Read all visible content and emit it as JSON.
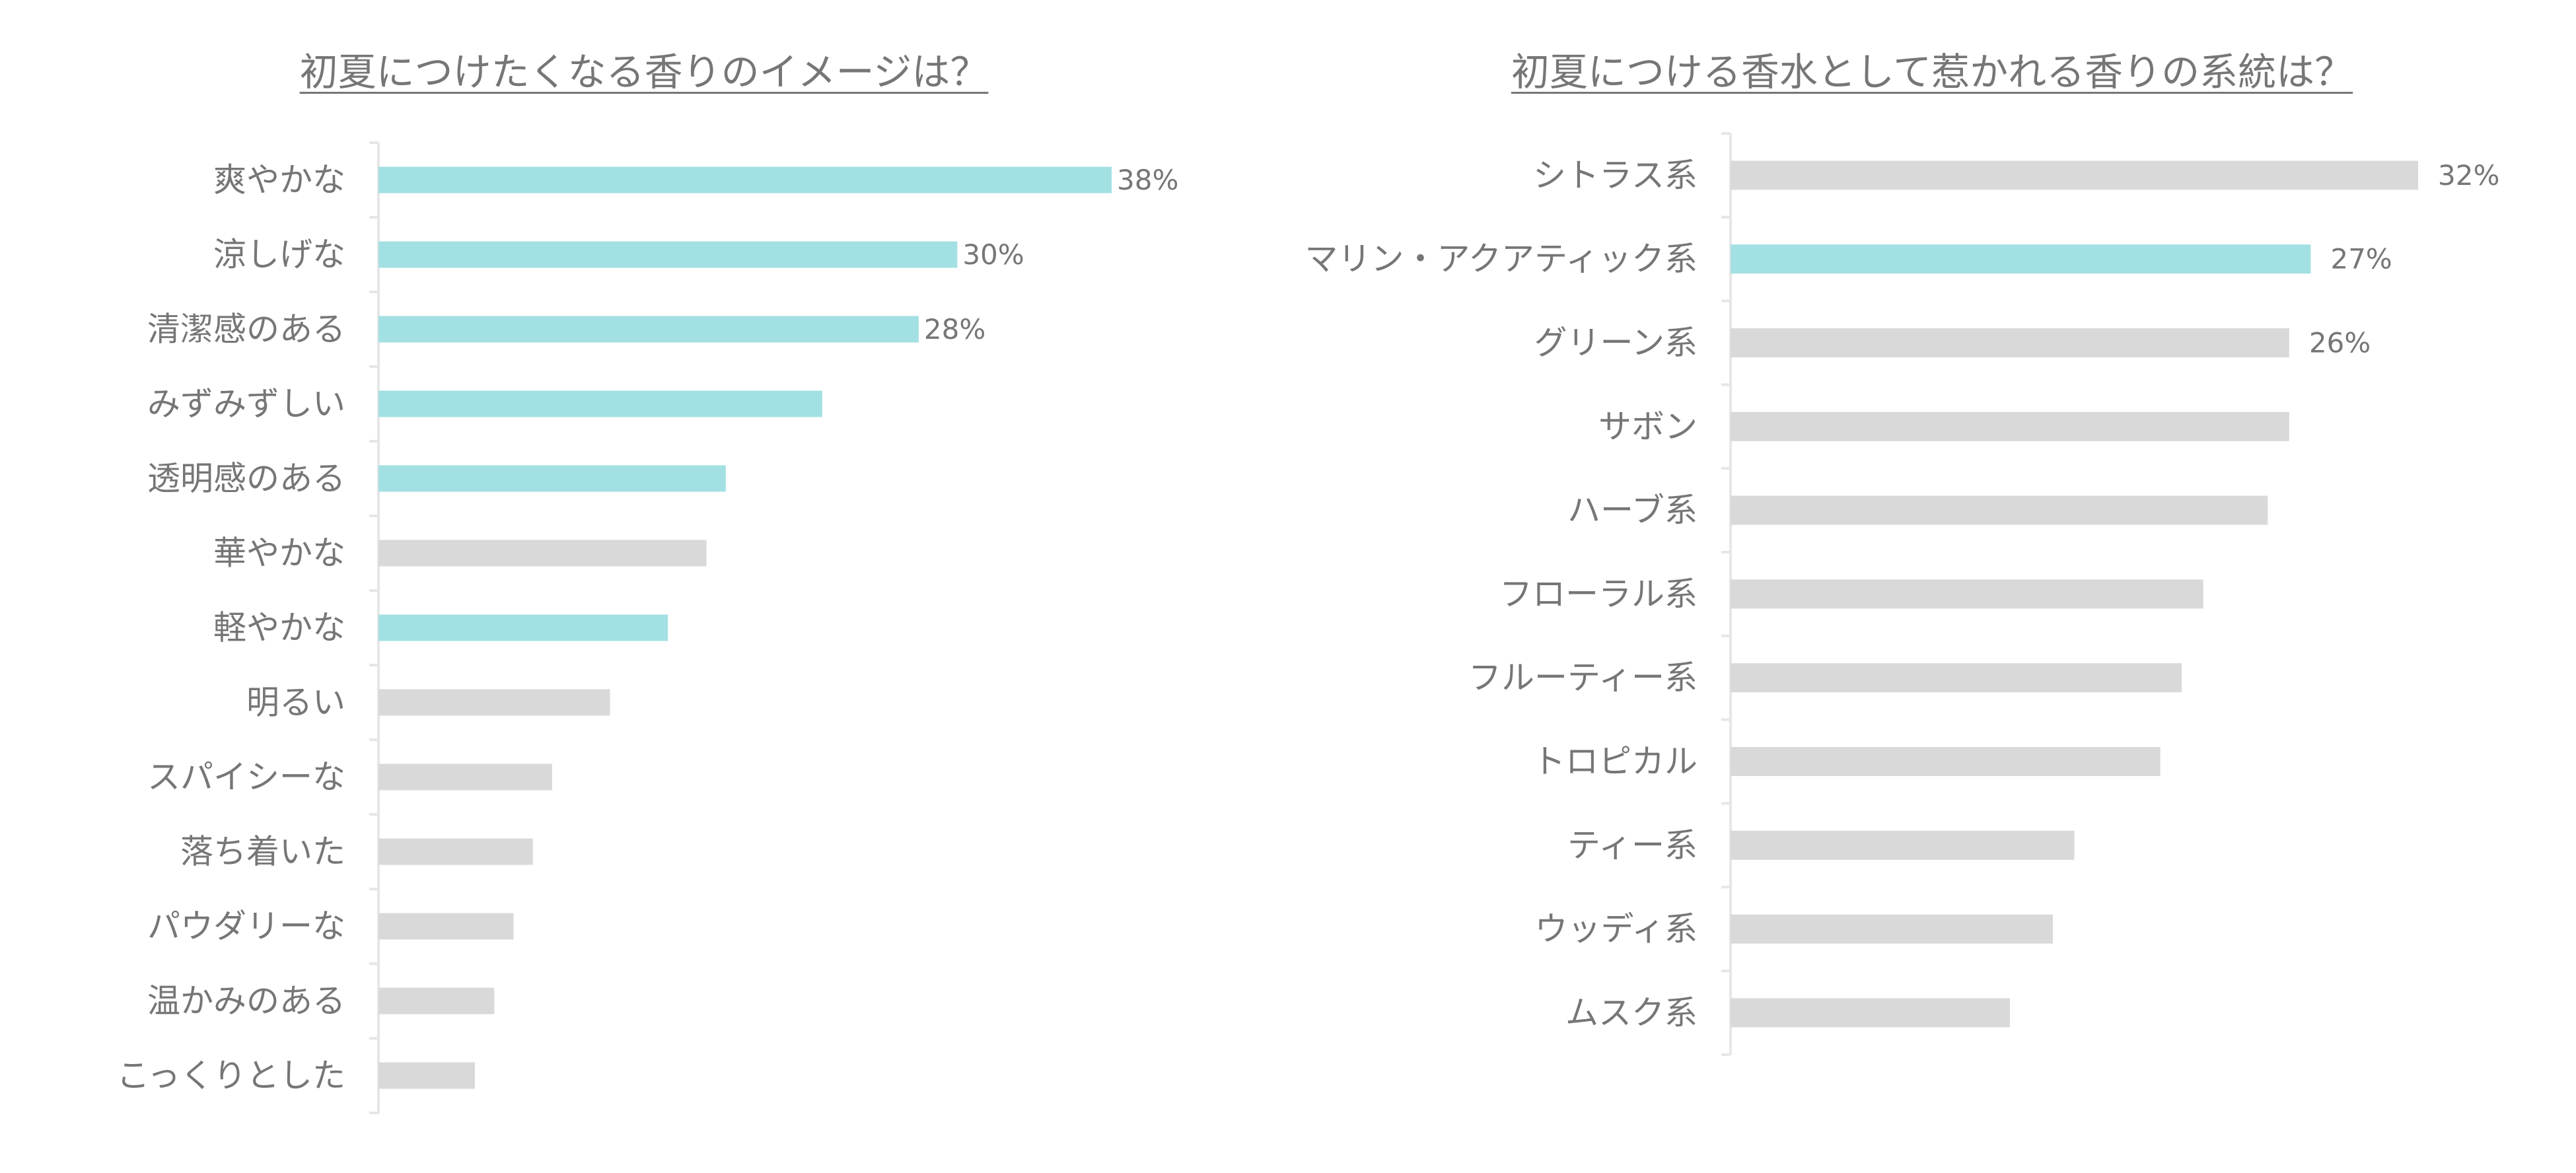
{
  "colors": {
    "highlight": "#a3e0e4",
    "base": "#d9d9d9",
    "text": "#767676",
    "axis": "#e6e6e6"
  },
  "chart_data": [
    {
      "type": "bar",
      "orientation": "horizontal",
      "title": "初夏につけたくなる香りのイメージは？",
      "xlim": [
        0,
        38
      ],
      "categories": [
        "爽やかな",
        "涼しげな",
        "清潔感のある",
        "みずみずしい",
        "透明感のある",
        "華やかな",
        "軽やかな",
        "明るい",
        "スパイシーな",
        "落ち着いた",
        "パウダリーな",
        "温かみのある",
        "こっくりとした"
      ],
      "values": [
        38,
        30,
        28,
        23,
        18,
        17,
        15,
        12,
        9,
        8,
        7,
        6,
        5
      ],
      "data_labels": [
        "38%",
        "30%",
        "28%",
        "",
        "",
        "",
        "",
        "",
        "",
        "",
        "",
        "",
        ""
      ],
      "highlighted": [
        true,
        true,
        true,
        true,
        true,
        false,
        true,
        false,
        false,
        false,
        false,
        false,
        false
      ]
    },
    {
      "type": "bar",
      "orientation": "horizontal",
      "title": "初夏につける香水として惹かれる香りの系統は？",
      "xlim": [
        0,
        32
      ],
      "categories": [
        "シトラス系",
        "マリン・アクアティック系",
        "グリーン系",
        "サボン",
        "ハーブ系",
        "フローラル系",
        "フルーティー系",
        "トロピカル",
        "ティー系",
        "ウッディ系",
        "ムスク系"
      ],
      "values": [
        32,
        27,
        26,
        26,
        25,
        22,
        21,
        20,
        16,
        15,
        13
      ],
      "data_labels": [
        "32%",
        "27%",
        "26%",
        "",
        "",
        "",
        "",
        "",
        "",
        "",
        ""
      ],
      "highlighted": [
        false,
        true,
        false,
        false,
        false,
        false,
        false,
        false,
        false,
        false,
        false
      ]
    }
  ]
}
